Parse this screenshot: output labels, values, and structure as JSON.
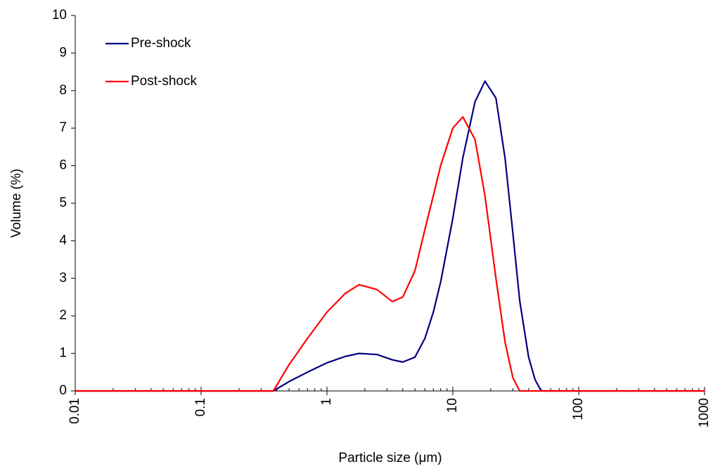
{
  "chart_data": {
    "type": "line",
    "x_label": "Particle size (μm)",
    "y_label": "Volume (%)",
    "x": [
      0.01,
      0.1,
      0.375,
      0.5,
      0.7,
      1,
      1.4,
      1.8,
      2.5,
      3.3,
      4,
      5,
      6,
      7,
      8,
      10,
      12,
      15,
      18,
      22,
      26,
      30,
      34,
      40,
      45,
      50,
      52,
      100,
      1000
    ],
    "series": [
      {
        "name": "Pre-shock",
        "color": "#000080",
        "values": [
          0,
          0,
          0,
          0.25,
          0.5,
          0.75,
          0.92,
          1.0,
          0.97,
          0.83,
          0.77,
          0.9,
          1.4,
          2.1,
          2.9,
          4.6,
          6.2,
          7.7,
          8.25,
          7.8,
          6.2,
          4.2,
          2.4,
          0.9,
          0.3,
          0.02,
          0,
          0,
          0
        ]
      },
      {
        "name": "Post-shock",
        "color": "#ff0000",
        "values": [
          0,
          0,
          0,
          0.7,
          1.4,
          2.1,
          2.6,
          2.83,
          2.7,
          2.38,
          2.5,
          3.2,
          4.3,
          5.2,
          6.0,
          7.0,
          7.3,
          6.7,
          5.2,
          3.0,
          1.3,
          0.35,
          0,
          0,
          0,
          0,
          0,
          0,
          0
        ]
      }
    ],
    "xlim": [
      0.01,
      1000
    ],
    "xticks": [
      0.01,
      0.1,
      1,
      10,
      100,
      1000
    ],
    "x_log": true,
    "ylim": [
      0,
      10
    ],
    "yticks": [
      0,
      1,
      2,
      3,
      4,
      5,
      6,
      7,
      8,
      9,
      10
    ],
    "legend": "upper left"
  }
}
